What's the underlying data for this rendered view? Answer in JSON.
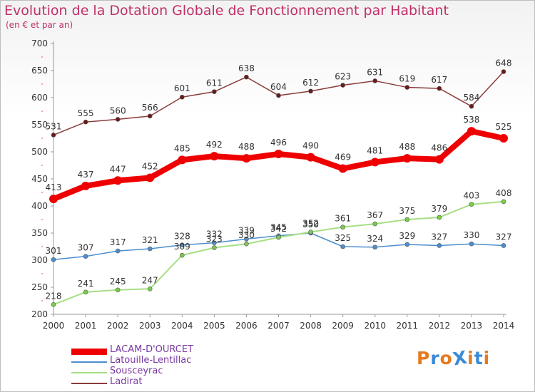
{
  "title": "Evolution de la Dotation Globale de Fonctionnement par Habitant",
  "subtitle": "(en € et par an)",
  "logo": {
    "text": "ProXiti",
    "colors": [
      "#e57a1f",
      "#3b8ad6",
      "#e57a1f",
      "#3b8ad6",
      "#e57a1f",
      "#3b8ad6",
      "#e57a1f"
    ]
  },
  "chart_data": {
    "type": "line",
    "title": "Evolution de la Dotation Globale de Fonctionnement par Habitant",
    "subtitle": "(en € et par an)",
    "x": [
      "2000",
      "2001",
      "2002",
      "2003",
      "2004",
      "2005",
      "2006",
      "2007",
      "2008",
      "2009",
      "2010",
      "2011",
      "2012",
      "2013",
      "2014"
    ],
    "ylim": [
      200,
      700
    ],
    "yticks": [
      200,
      250,
      300,
      350,
      400,
      450,
      500,
      550,
      600,
      650,
      700
    ],
    "grid": false,
    "legend_position": "bottom-left",
    "series": [
      {
        "name": "LACAM-D'OURCET",
        "color": "#ee0000",
        "marker": "#ee0000",
        "width": 8,
        "values": [
          413,
          437,
          447,
          452,
          485,
          492,
          488,
          496,
          490,
          469,
          481,
          488,
          486,
          538,
          525
        ]
      },
      {
        "name": "Latouille-Lentillac",
        "color": "#4d8ecf",
        "marker": "#4d8ecf",
        "width": 1.5,
        "values": [
          301,
          307,
          317,
          321,
          328,
          332,
          339,
          345,
          350,
          325,
          324,
          329,
          327,
          330,
          327
        ]
      },
      {
        "name": "Sousceyrac",
        "color": "#a6df85",
        "marker": "#7acc4b",
        "width": 2,
        "values": [
          218,
          241,
          245,
          247,
          309,
          323,
          330,
          342,
          352,
          361,
          367,
          375,
          379,
          403,
          408
        ]
      },
      {
        "name": "Ladirat",
        "color": "#8a3b3b",
        "marker": "#6b1a1a",
        "width": 1.5,
        "values": [
          531,
          555,
          560,
          566,
          601,
          611,
          638,
          604,
          612,
          623,
          631,
          619,
          617,
          584,
          648
        ]
      }
    ]
  }
}
